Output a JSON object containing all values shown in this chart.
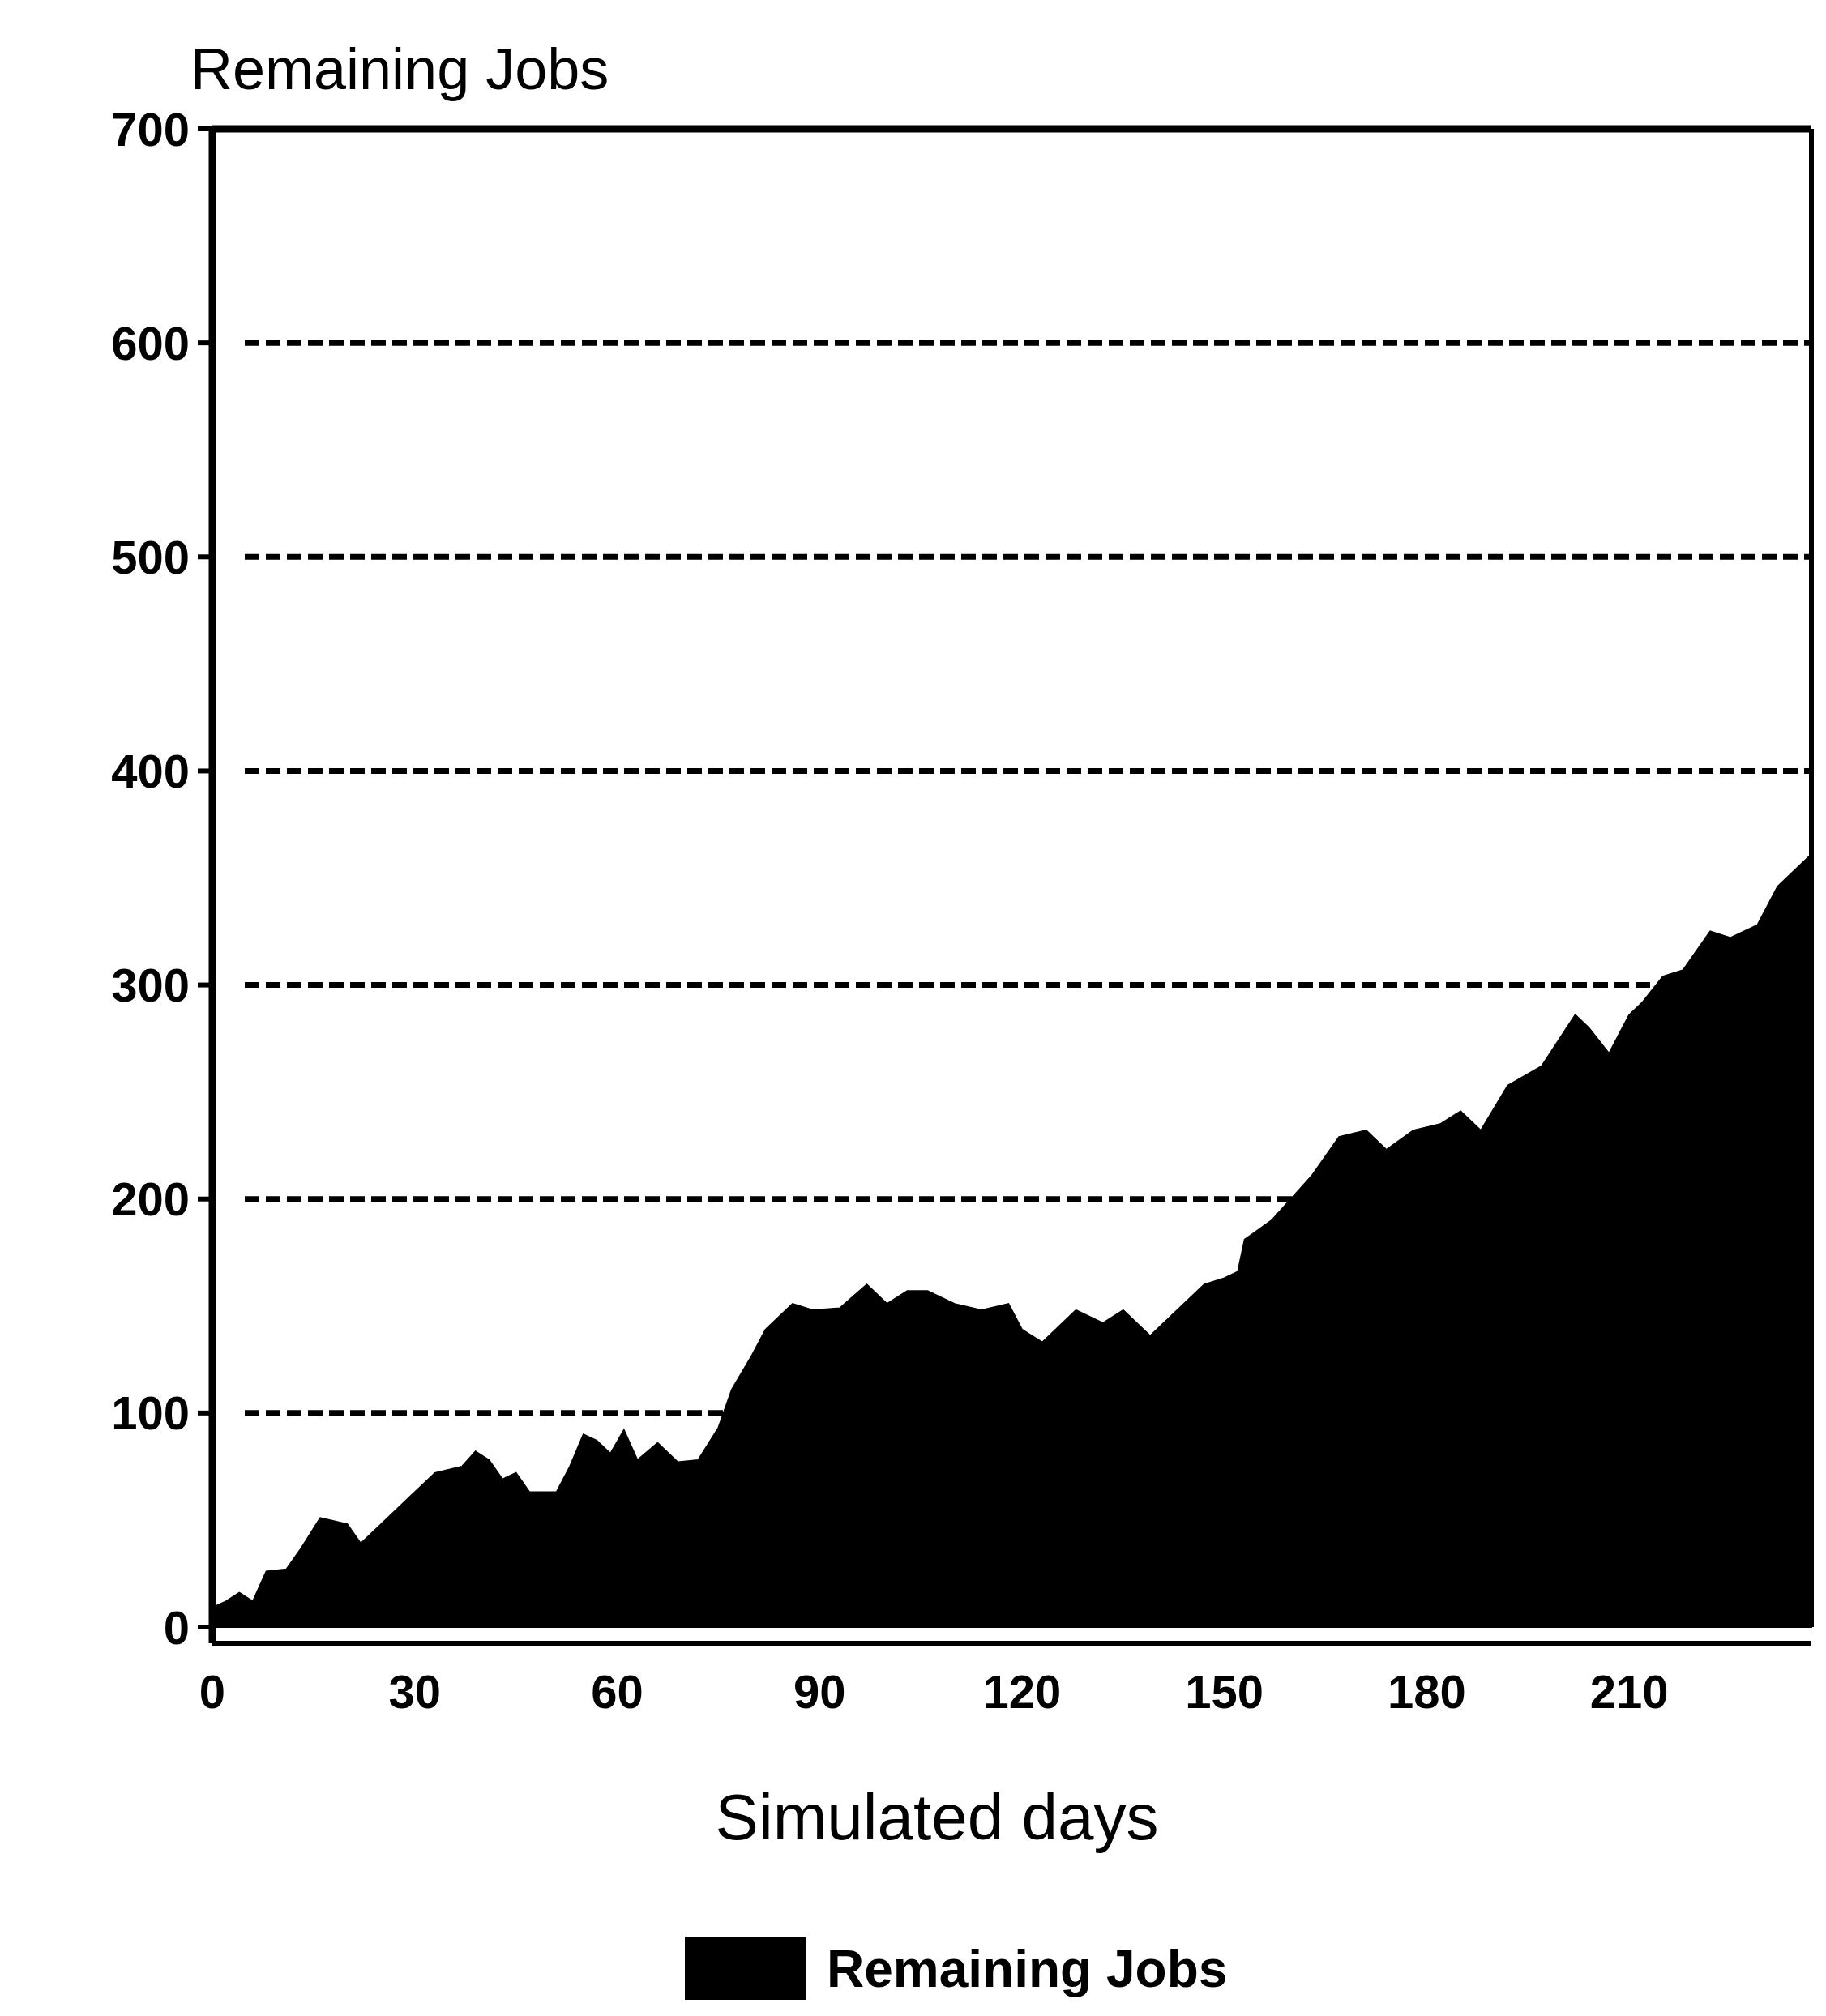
{
  "chart_data": {
    "type": "area",
    "ylabel": "Remaining Jobs",
    "xlabel": "Simulated days",
    "xlim": [
      0,
      237
    ],
    "xticks": [
      0,
      30,
      60,
      90,
      120,
      150,
      180,
      210
    ],
    "ylim": [
      0,
      700
    ],
    "yticks": [
      0,
      100,
      200,
      300,
      400,
      500,
      600,
      700
    ],
    "grid": "y",
    "line_style": "dashed",
    "legend": "bottom",
    "series": [
      {
        "name": "Remaining Jobs",
        "color": "#000000",
        "x": [
          0,
          2,
          4,
          6,
          8,
          11,
          13,
          16,
          20,
          22,
          25,
          29,
          33,
          37,
          39,
          41,
          43,
          45,
          47,
          51,
          53,
          55,
          57,
          59,
          61,
          63,
          66,
          69,
          72,
          75,
          77,
          80,
          82,
          86,
          89,
          93,
          97,
          100,
          103,
          106,
          110,
          114,
          118,
          120,
          123,
          128,
          132,
          135,
          139,
          143,
          147,
          150,
          152,
          153,
          157,
          163,
          167,
          171,
          174,
          178,
          182,
          185,
          188,
          192,
          197,
          202,
          204,
          207,
          210,
          212,
          215,
          218,
          222,
          225,
          229,
          232,
          237
        ],
        "values": [
          9,
          12,
          16,
          12,
          26,
          27,
          36,
          51,
          48,
          39,
          48,
          60,
          72,
          75,
          82,
          78,
          69,
          72,
          63,
          63,
          75,
          90,
          87,
          81,
          92,
          78,
          86,
          77,
          78,
          93,
          111,
          127,
          139,
          151,
          148,
          149,
          160,
          151,
          157,
          157,
          151,
          148,
          151,
          139,
          133,
          148,
          142,
          148,
          136,
          148,
          160,
          163,
          166,
          181,
          190,
          211,
          229,
          232,
          223,
          232,
          235,
          241,
          232,
          253,
          262,
          286,
          280,
          268,
          286,
          292,
          304,
          307,
          325,
          322,
          328,
          346,
          361
        ]
      }
    ]
  }
}
